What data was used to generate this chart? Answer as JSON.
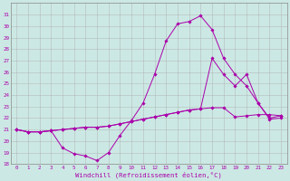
{
  "xlabel": "Windchill (Refroidissement éolien,°C)",
  "background_color": "#cce8e4",
  "line_color": "#aa00aa",
  "grid_color": "#aaaaaa",
  "xlim": [
    -0.5,
    23.5
  ],
  "ylim": [
    18,
    32
  ],
  "xticks": [
    0,
    1,
    2,
    3,
    4,
    5,
    6,
    7,
    8,
    9,
    10,
    11,
    12,
    13,
    14,
    15,
    16,
    17,
    18,
    19,
    20,
    21,
    22,
    23
  ],
  "yticks": [
    18,
    19,
    20,
    21,
    22,
    23,
    24,
    25,
    26,
    27,
    28,
    29,
    30,
    31
  ],
  "series1_x": [
    0,
    1,
    2,
    3,
    4,
    5,
    6,
    7,
    8,
    9,
    10,
    11,
    12,
    13,
    14,
    15,
    16,
    17,
    18,
    19,
    20,
    21,
    22,
    23
  ],
  "series1_y": [
    21.0,
    20.8,
    20.8,
    20.9,
    19.4,
    18.9,
    18.7,
    18.3,
    19.0,
    20.5,
    21.8,
    23.3,
    25.8,
    28.7,
    30.2,
    30.4,
    30.9,
    29.7,
    27.2,
    25.8,
    24.8,
    23.3,
    21.9,
    22.0
  ],
  "series2_x": [
    0,
    1,
    2,
    3,
    4,
    5,
    6,
    7,
    8,
    9,
    10,
    11,
    12,
    13,
    14,
    15,
    16,
    17,
    18,
    19,
    20,
    21,
    22,
    23
  ],
  "series2_y": [
    21.0,
    20.8,
    20.8,
    20.9,
    21.0,
    21.1,
    21.2,
    21.2,
    21.3,
    21.5,
    21.7,
    21.9,
    22.1,
    22.3,
    22.5,
    22.7,
    22.8,
    27.2,
    25.8,
    24.8,
    25.8,
    23.3,
    22.0,
    22.2
  ],
  "series3_x": [
    0,
    1,
    2,
    3,
    4,
    5,
    6,
    7,
    8,
    9,
    10,
    11,
    12,
    13,
    14,
    15,
    16,
    17,
    18,
    19,
    20,
    21,
    22,
    23
  ],
  "series3_y": [
    21.0,
    20.8,
    20.8,
    20.9,
    21.0,
    21.1,
    21.2,
    21.2,
    21.3,
    21.5,
    21.7,
    21.9,
    22.1,
    22.3,
    22.5,
    22.7,
    22.8,
    22.9,
    22.9,
    22.1,
    22.2,
    22.3,
    22.3,
    22.2
  ]
}
